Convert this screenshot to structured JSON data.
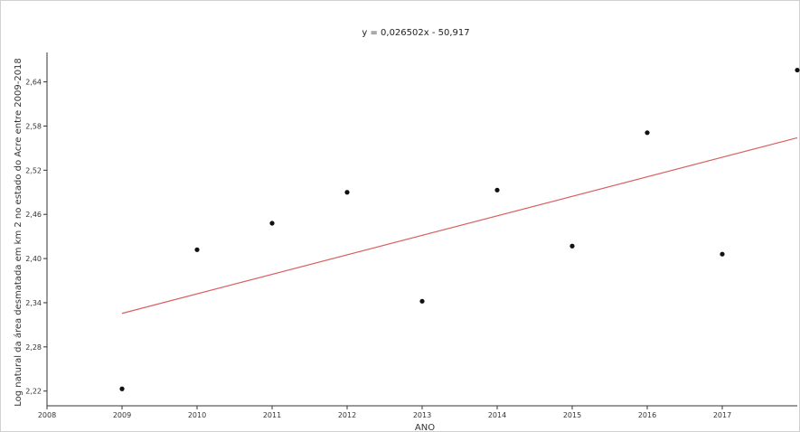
{
  "chart_data": {
    "type": "scatter",
    "title": "y = 0,026502x - 50,917",
    "xlabel": "ANO",
    "ylabel": "Log natural da área desmatada em km 2 no estado do Acre entre 2009-2018",
    "xlim": [
      2008,
      2018
    ],
    "ylim": [
      2.2,
      2.68
    ],
    "x_ticks": [
      "2008",
      "2009",
      "2010",
      "2011",
      "2012",
      "2013",
      "2014",
      "2015",
      "2016",
      "2017"
    ],
    "y_ticks": [
      "2,22",
      "2,28",
      "2,34",
      "2,40",
      "2,46",
      "2,52",
      "2,58",
      "2,64"
    ],
    "x_tick_values": [
      2008,
      2009,
      2010,
      2011,
      2012,
      2013,
      2014,
      2015,
      2016,
      2017
    ],
    "y_tick_values": [
      2.22,
      2.28,
      2.34,
      2.4,
      2.46,
      2.52,
      2.58,
      2.64
    ],
    "series": [
      {
        "x": [
          2009,
          2010,
          2011,
          2012,
          2013,
          2014,
          2015,
          2016,
          2017,
          2018
        ],
        "y": [
          2.223,
          2.412,
          2.448,
          2.49,
          2.342,
          2.493,
          2.417,
          2.571,
          2.406,
          2.656
        ]
      }
    ],
    "trendline": {
      "slope": 0.026502,
      "intercept": -50.917,
      "x_start": 2009,
      "x_end": 2018
    },
    "colors": {
      "points": "#111111",
      "trendline": "#d9605f",
      "axes": "#333333"
    },
    "grid": false
  }
}
